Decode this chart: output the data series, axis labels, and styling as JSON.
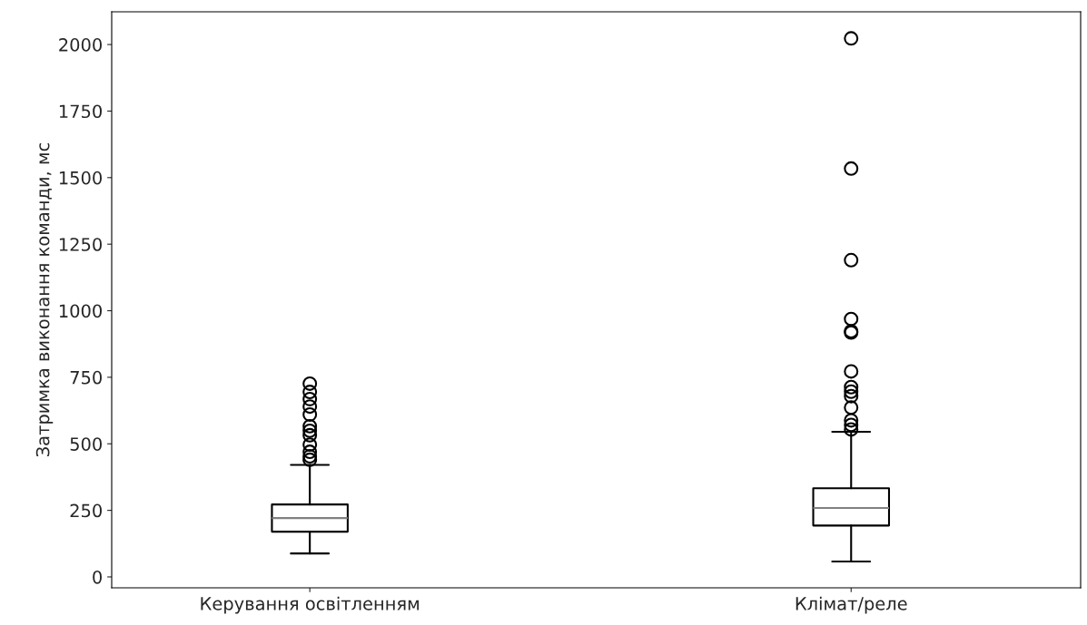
{
  "chart_data": {
    "type": "box",
    "ylabel": "Затримка виконання команди, мс",
    "categories": [
      "Керування освітленням",
      "Клімат/реле"
    ],
    "ylim": [
      -41,
      2123
    ],
    "yticks": [
      0,
      250,
      500,
      750,
      1000,
      1250,
      1500,
      1750,
      2000
    ],
    "color": "#000000",
    "grid": false,
    "legend": false,
    "boxes": [
      {
        "low": 88,
        "q1": 170,
        "median": 221,
        "q3": 272,
        "high": 421,
        "outliers": [
          726,
          695,
          668,
          640,
          610,
          566,
          549,
          532,
          497,
          470,
          453,
          440
        ]
      },
      {
        "low": 58,
        "q1": 193,
        "median": 259,
        "q3": 333,
        "high": 545,
        "outliers": [
          2023,
          1534,
          1190,
          969,
          923,
          918,
          772,
          713,
          696,
          679,
          636,
          588,
          571,
          554
        ]
      }
    ]
  }
}
